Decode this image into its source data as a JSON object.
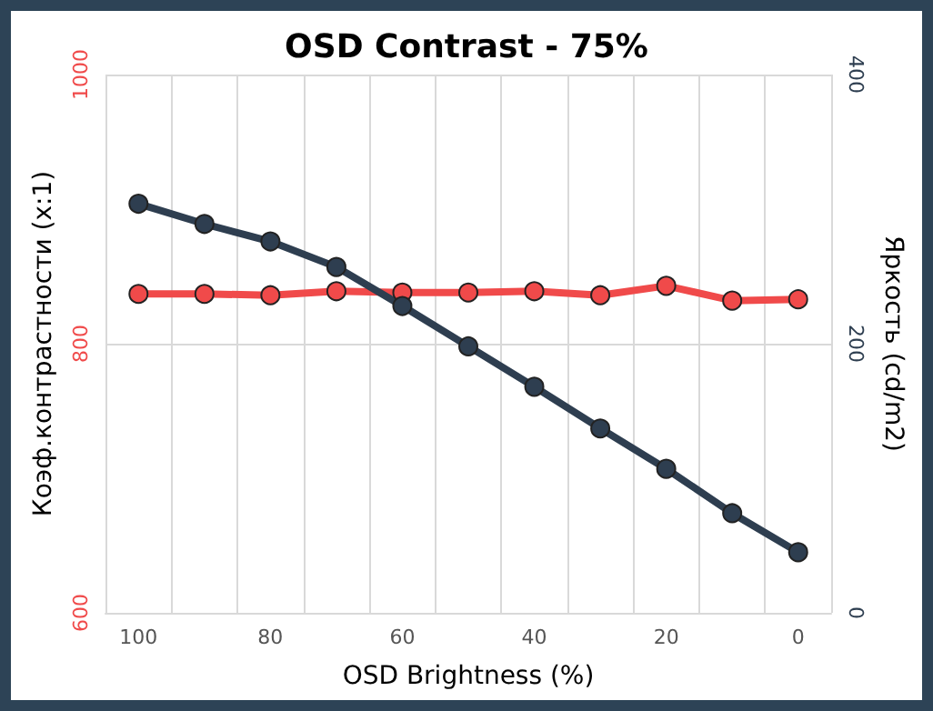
{
  "chart_data": {
    "type": "line",
    "title": "OSD Contrast - 75%",
    "xlabel": "OSD Brightness (%)",
    "ylabel": "Коэф.контрастности (x:1)",
    "y2label": "Яркость (cd/m2)",
    "categories": [
      "100",
      null,
      "80",
      null,
      "60",
      null,
      "40",
      null,
      "20",
      null,
      "0"
    ],
    "series": [
      {
        "color": "#f04a4a",
        "values": [
          837,
          837,
          836,
          839,
          838,
          838,
          839,
          836,
          843,
          832,
          833
        ]
      },
      {
        "color": "#2e3e50",
        "axis": "y2",
        "values": [
          304,
          289,
          276,
          257,
          228,
          198,
          168,
          137,
          107,
          74,
          45
        ]
      }
    ],
    "ylim": [
      600,
      1000
    ],
    "yticks": [
      600,
      800,
      1000
    ],
    "y2lim": [
      0,
      400
    ],
    "y2ticks": [
      0,
      200,
      400
    ],
    "grid": true,
    "marker": "circle",
    "line_style": "solid"
  }
}
